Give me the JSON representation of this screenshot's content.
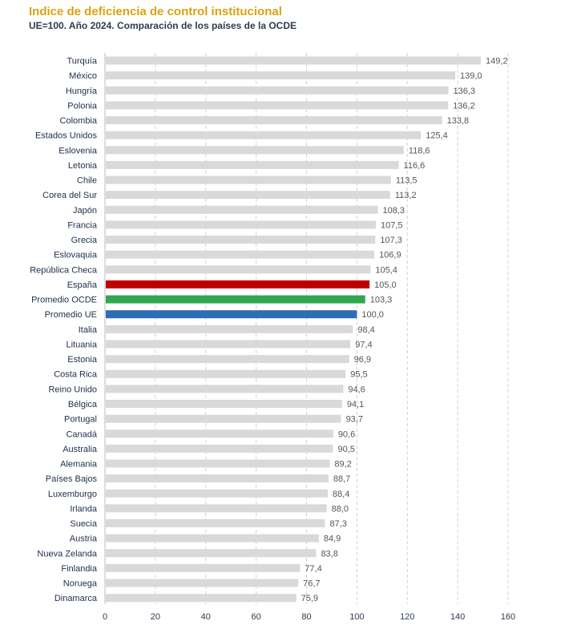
{
  "chart_data": {
    "type": "bar",
    "orientation": "horizontal",
    "title": "Indice de deficiencia de control institucional",
    "subtitle": "UE=100. Año 2024. Comparación de los países de la OCDE",
    "xlabel": "",
    "ylabel": "",
    "xlim": [
      0,
      160
    ],
    "xticks": [
      "0",
      "20",
      "40",
      "60",
      "80",
      "100",
      "120",
      "140",
      "160"
    ],
    "grid": true,
    "categories": [
      "Turquía",
      "México",
      "Hungría",
      "Polonia",
      "Colombia",
      "Estados Unidos",
      "Eslovenia",
      "Letonia",
      "Chile",
      "Corea del Sur",
      "Japón",
      "Francia",
      "Grecia",
      "Eslovaquia",
      "República Checa",
      "España",
      "Promedio OCDE",
      "Promedio UE",
      "Italia",
      "Lituania",
      "Estonia",
      "Costa Rica",
      "Reino Unido",
      "Bélgica",
      "Portugal",
      "Canadá",
      "Australia",
      "Alemania",
      "Países Bajos",
      "Luxemburgo",
      "Irlanda",
      "Suecia",
      "Austria",
      "Nueva Zelanda",
      "Finlandia",
      "Noruega",
      "Dinamarca"
    ],
    "values": [
      149.2,
      139.0,
      136.3,
      136.2,
      133.8,
      125.4,
      118.6,
      116.6,
      113.5,
      113.2,
      108.3,
      107.5,
      107.3,
      106.9,
      105.4,
      105.0,
      103.3,
      100.0,
      98.4,
      97.4,
      96.9,
      95.5,
      94.6,
      94.1,
      93.7,
      90.6,
      90.5,
      89.2,
      88.7,
      88.4,
      88.0,
      87.3,
      84.9,
      83.8,
      77.4,
      76.7,
      75.9
    ],
    "value_labels": [
      "149,2",
      "139,0",
      "136,3",
      "136,2",
      "133,8",
      "125,4",
      "118,6",
      "116,6",
      "113,5",
      "113,2",
      "108,3",
      "107,5",
      "107,3",
      "106,9",
      "105,4",
      "105,0",
      "103,3",
      "100,0",
      "98,4",
      "97,4",
      "96,9",
      "95,5",
      "94,6",
      "94,1",
      "93,7",
      "90,6",
      "90,5",
      "89,2",
      "88,7",
      "88,4",
      "88,0",
      "87,3",
      "84,9",
      "83,8",
      "77,4",
      "76,7",
      "75,9"
    ],
    "colors": {
      "default": "#d9d9d9",
      "España": "#c00000",
      "Promedio OCDE": "#2ea84f",
      "Promedio UE": "#2e6db4"
    }
  }
}
